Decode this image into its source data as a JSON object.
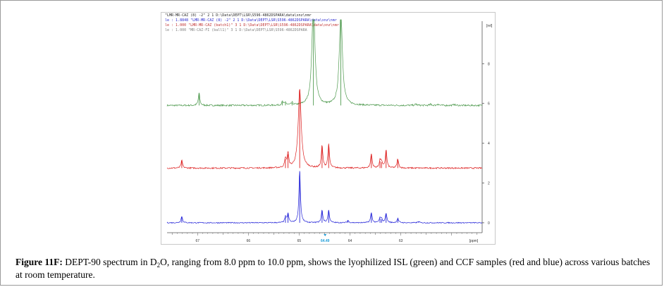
{
  "header_lines": [
    {
      "text": "\"LMR-MR-CAZ (8) -2\" 2 1 D:\\Data\\DEPT\\LSR\\S596-4862DSPARA\\data\\xnz\\nmr",
      "color": "#1f1f1f"
    },
    {
      "text": "le : 1.8848   \"LMR-MR-CAZ (8) -2\"  2  1  D:\\Data\\DEPT\\LSR\\S596-4862DSPARA\\data\\xnz\\nmr",
      "color": "#2a2ad0"
    },
    {
      "text": "le : 1.000   \"LMR-MR-CAZ (batch1)\"  3  1  D:\\Data\\DEPT\\LSR\\S596-4862DSPARA\\data\\xnz\\nmr",
      "color": "#c03030"
    },
    {
      "text": "le : 1.000   \"MR-CAZ-FI (ball1)\"  3  1  D:\\Data\\DEPT\\LSR\\S596-4862DSPARA",
      "color": "#7f7f7f"
    }
  ],
  "chart_data": {
    "type": "line",
    "xlabel": "[ppm]",
    "ylabel": "[rel]",
    "xlim": [
      67.6,
      61.4
    ],
    "x_reversed": true,
    "x_ticks": [
      "67",
      "66",
      "65",
      "64",
      "63"
    ],
    "highlighted_tick": "64.49",
    "y_ticks": [
      "8",
      "6",
      "4",
      "2",
      "0"
    ],
    "ylim": [
      -0.5,
      9.5
    ],
    "colors": {
      "green": "#4f9a4f",
      "red": "#dd1f1f",
      "blue": "#2525d8"
    },
    "series": [
      {
        "key": "green",
        "baseline": 5.9,
        "noise": 0.04,
        "x": [
          66.97,
          65.33,
          65.27,
          65.14,
          64.72,
          64.18,
          62.7,
          62.41,
          62.27,
          61.95
        ],
        "values": [
          0.62,
          0.18,
          0.14,
          0.12,
          5.3,
          4.8,
          0.08,
          0.07,
          0.08,
          0.06
        ]
      },
      {
        "key": "red",
        "baseline": 2.75,
        "noise": 0.035,
        "x": [
          67.31,
          65.27,
          65.22,
          64.99,
          64.55,
          64.42,
          63.58,
          63.41,
          63.38,
          63.29,
          63.06
        ],
        "values": [
          0.38,
          0.45,
          0.7,
          3.96,
          1.1,
          1.16,
          0.7,
          0.35,
          0.3,
          0.9,
          0.45
        ]
      },
      {
        "key": "blue",
        "baseline": 0.0,
        "noise": 0.025,
        "x": [
          67.31,
          65.27,
          65.22,
          64.99,
          64.55,
          64.42,
          64.04,
          63.58,
          63.41,
          63.38,
          63.29,
          63.06,
          62.65
        ],
        "values": [
          0.32,
          0.28,
          0.45,
          2.6,
          0.62,
          0.62,
          0.12,
          0.5,
          0.22,
          0.18,
          0.48,
          0.22,
          0.06
        ]
      }
    ]
  },
  "caption": {
    "label": "Figure 11F:",
    "text_before_sub": "DEPT-90 spectrum in D",
    "sub": "2",
    "text_after_sub": "O, ranging from 8.0 ppm to 10.0 ppm, shows the lyophilized ISL (green) and CCF samples (red and blue) across various batches at room temperature."
  }
}
